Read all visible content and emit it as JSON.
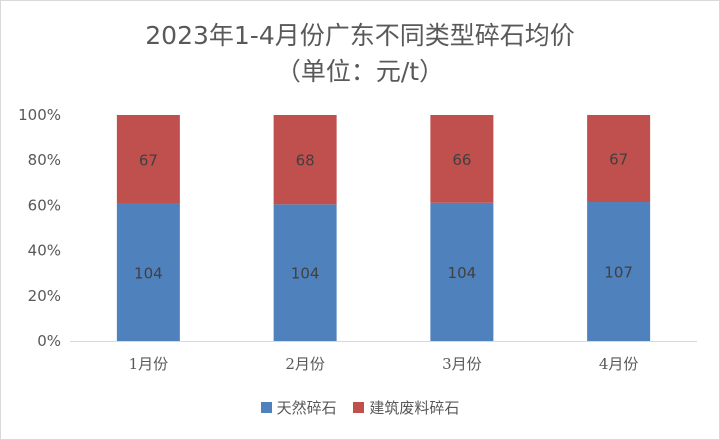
{
  "chart_data": {
    "type": "bar",
    "stacked": "percent",
    "title": "2023年1-4月份广东不同类型碎石均价",
    "subtitle": "（单位：元/t）",
    "categories": [
      "1月份",
      "2月份",
      "3月份",
      "4月份"
    ],
    "series": [
      {
        "name": "天然碎石",
        "color": "#4f81bd",
        "values": [
          104,
          104,
          104,
          107
        ]
      },
      {
        "name": "建筑废料碎石",
        "color": "#c0504d",
        "values": [
          67,
          68,
          66,
          67
        ]
      }
    ],
    "y_ticks": [
      "0%",
      "20%",
      "40%",
      "60%",
      "80%",
      "100%"
    ],
    "ylim": [
      0,
      100
    ],
    "grid": false,
    "legend": "bottom"
  }
}
